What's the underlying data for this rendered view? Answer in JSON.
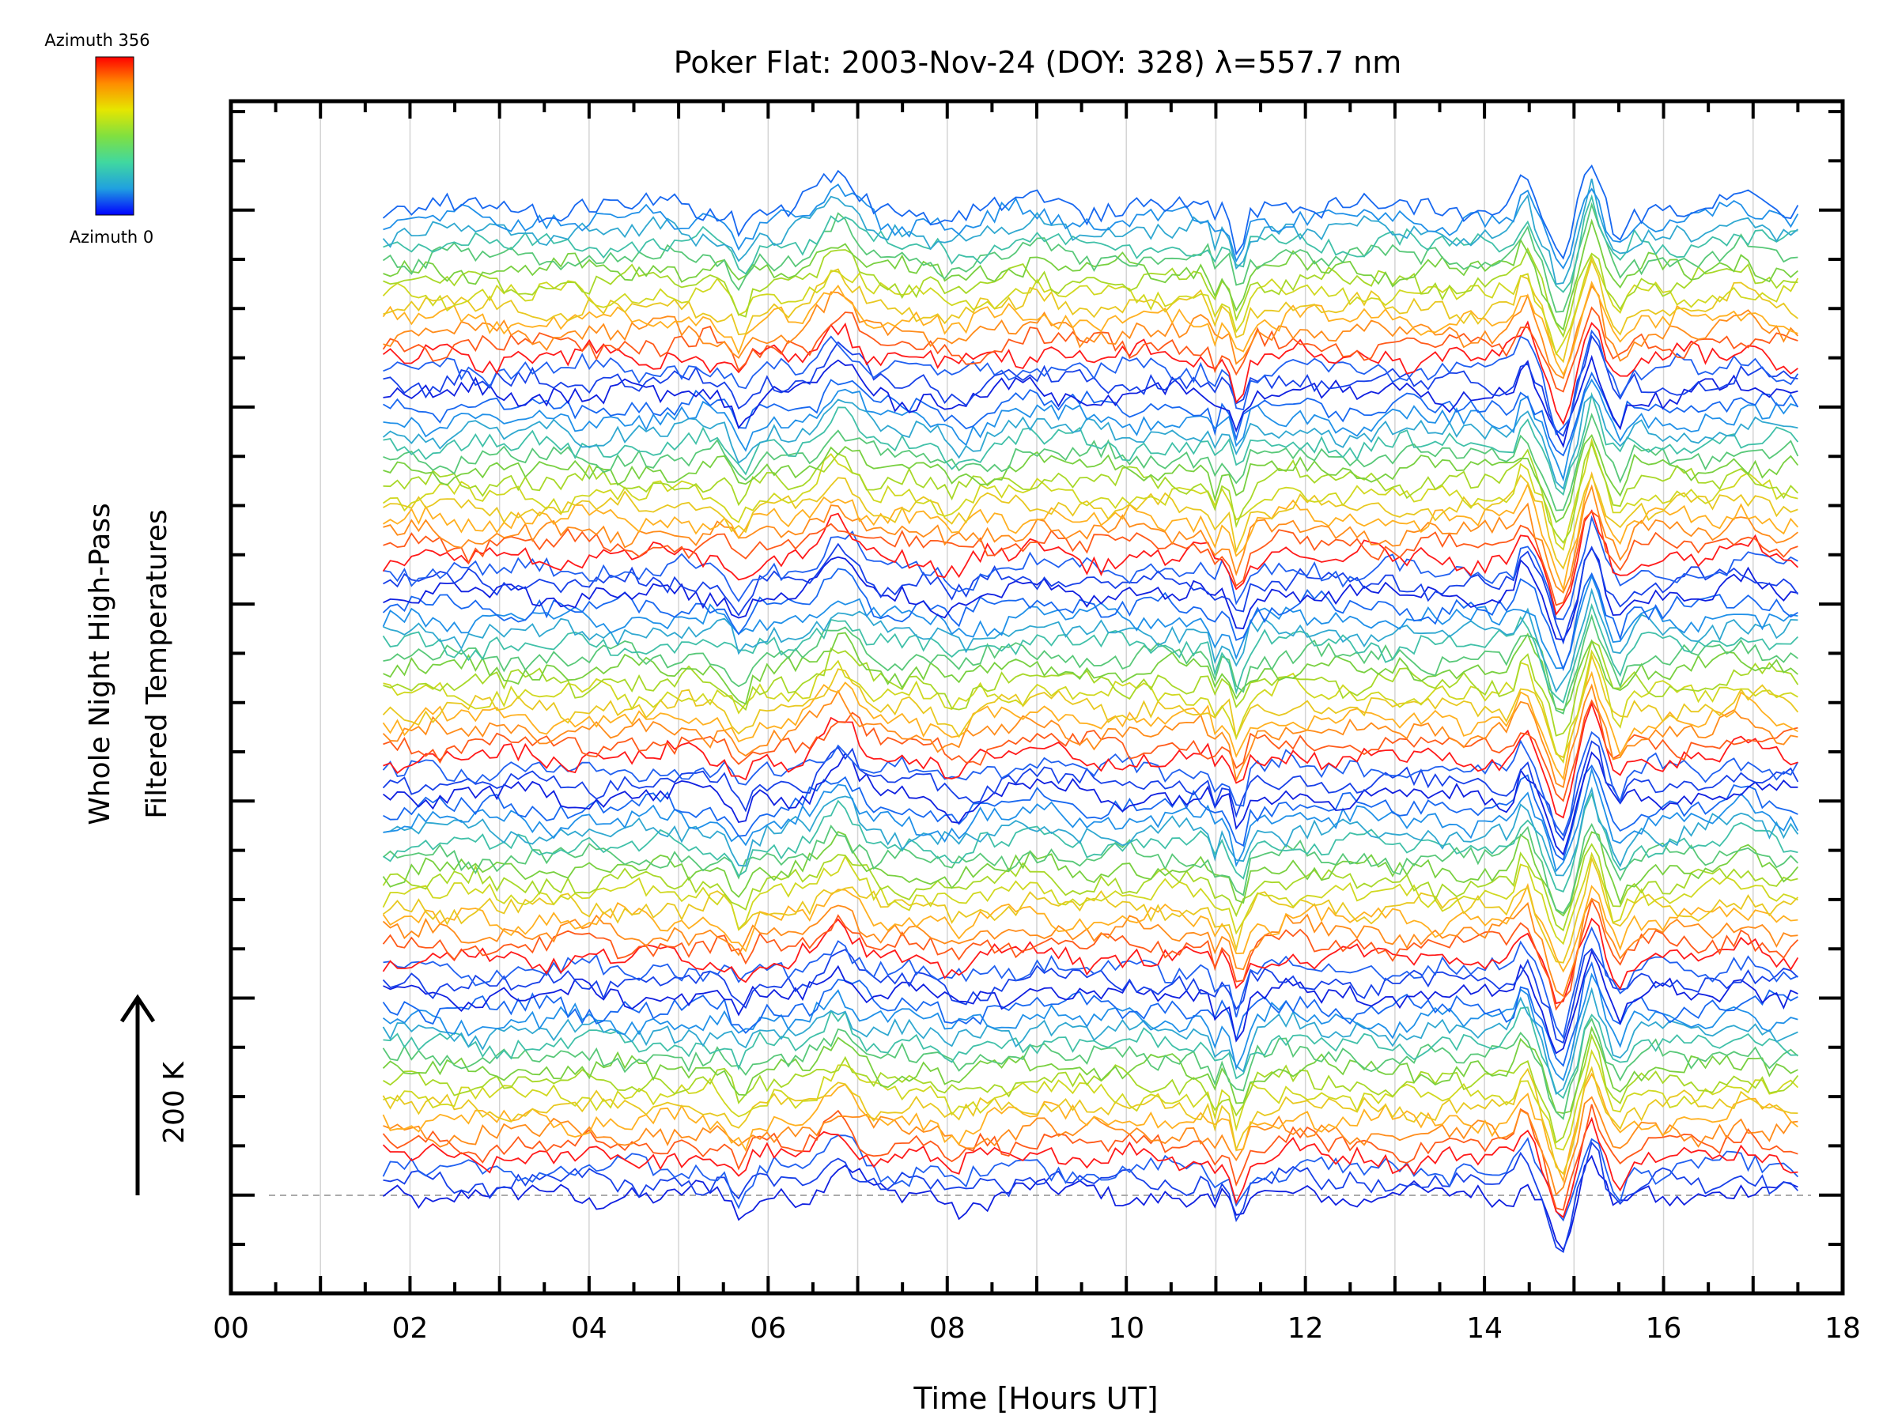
{
  "chart_data": {
    "type": "line",
    "title": "Poker Flat: 2003-Nov-24 (DOY: 328) λ=557.7 nm",
    "xlabel": "Time [Hours UT]",
    "ylabel_line1": "Whole Night High-Pass",
    "ylabel_line2": "Filtered Temperatures",
    "scale_bar_label": "200 K",
    "colorbar": {
      "top_label": "Azimuth 356",
      "bottom_label": "Azimuth 0",
      "colors": [
        "#ff0000",
        "#ff8c00",
        "#e6e600",
        "#80e040",
        "#40d8a0",
        "#20a0e0",
        "#0000ff"
      ]
    },
    "xlim": [
      0,
      18
    ],
    "x_ticks": [
      "00",
      "02",
      "04",
      "06",
      "08",
      "10",
      "12",
      "14",
      "16",
      "18"
    ],
    "grid": true,
    "series_count": 80,
    "data_x_range": [
      1.7,
      17.5
    ],
    "series_color_cycle": [
      "#1020e0",
      "#1840e8",
      "#2060f0",
      "#ff1a1a",
      "#ff5a1a",
      "#ff8c1a",
      "#ffb020",
      "#e8c820",
      "#d0d820",
      "#a8d828",
      "#78d040",
      "#58c878",
      "#40c0a8",
      "#30a8d0",
      "#2090e8",
      "#1868f0"
    ],
    "common_signal_events_hours": [
      {
        "t": 5.7,
        "amp": -0.45,
        "w": 0.12
      },
      {
        "t": 6.8,
        "amp": 0.6,
        "w": 0.25
      },
      {
        "t": 8.1,
        "amp": -0.25,
        "w": 0.2
      },
      {
        "t": 9.0,
        "amp": 0.15,
        "w": 0.3
      },
      {
        "t": 11.0,
        "amp": -0.35,
        "w": 0.06
      },
      {
        "t": 11.25,
        "amp": -0.75,
        "w": 0.09
      },
      {
        "t": 11.9,
        "amp": 0.1,
        "w": 0.2
      },
      {
        "t": 14.45,
        "amp": 0.55,
        "w": 0.1
      },
      {
        "t": 14.85,
        "amp": -1.15,
        "w": 0.15
      },
      {
        "t": 15.2,
        "amp": 0.85,
        "w": 0.11
      },
      {
        "t": 15.5,
        "amp": -0.45,
        "w": 0.1
      },
      {
        "t": 16.9,
        "amp": 0.2,
        "w": 0.25
      }
    ]
  }
}
